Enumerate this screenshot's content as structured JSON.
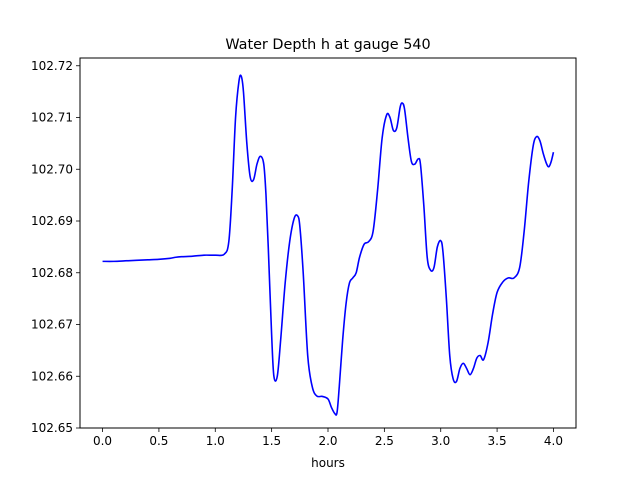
{
  "chart_data": {
    "type": "line",
    "title": "Water Depth h at gauge 540",
    "xlabel": "hours",
    "ylabel": "",
    "xlim": [
      -0.2,
      4.2
    ],
    "ylim": [
      102.65,
      102.7215
    ],
    "xticks": [
      0.0,
      0.5,
      1.0,
      1.5,
      2.0,
      2.5,
      3.0,
      3.5,
      4.0
    ],
    "xtick_labels": [
      "0.0",
      "0.5",
      "1.0",
      "1.5",
      "2.0",
      "2.5",
      "3.0",
      "3.5",
      "4.0"
    ],
    "yticks": [
      102.65,
      102.66,
      102.67,
      102.68,
      102.69,
      102.7,
      102.71,
      102.72
    ],
    "ytick_labels": [
      "102.65",
      "102.66",
      "102.67",
      "102.68",
      "102.69",
      "102.70",
      "102.71",
      "102.72"
    ],
    "grid": false,
    "series": [
      {
        "color": "#0000ff",
        "x": [
          0.0,
          0.1,
          0.2,
          0.3,
          0.4,
          0.5,
          0.6,
          0.65,
          0.7,
          0.8,
          0.9,
          1.0,
          1.08,
          1.12,
          1.15,
          1.18,
          1.21,
          1.23,
          1.25,
          1.28,
          1.31,
          1.34,
          1.37,
          1.4,
          1.43,
          1.45,
          1.47,
          1.5,
          1.52,
          1.55,
          1.58,
          1.62,
          1.66,
          1.7,
          1.73,
          1.75,
          1.78,
          1.82,
          1.86,
          1.9,
          1.95,
          2.0,
          2.03,
          2.06,
          2.08,
          2.1,
          2.13,
          2.16,
          2.19,
          2.22,
          2.25,
          2.28,
          2.32,
          2.36,
          2.4,
          2.44,
          2.48,
          2.52,
          2.55,
          2.58,
          2.61,
          2.64,
          2.66,
          2.68,
          2.71,
          2.74,
          2.77,
          2.8,
          2.82,
          2.85,
          2.88,
          2.91,
          2.94,
          2.97,
          3.0,
          3.02,
          3.05,
          3.08,
          3.11,
          3.14,
          3.17,
          3.2,
          3.23,
          3.26,
          3.29,
          3.32,
          3.35,
          3.38,
          3.42,
          3.46,
          3.5,
          3.55,
          3.6,
          3.65,
          3.7,
          3.74,
          3.78,
          3.82,
          3.85,
          3.88,
          3.91,
          3.94,
          3.96,
          3.98,
          4.0
        ],
        "y": [
          102.6822,
          102.6822,
          102.6823,
          102.6824,
          102.6825,
          102.6826,
          102.6828,
          102.683,
          102.6831,
          102.6832,
          102.6834,
          102.6834,
          102.6836,
          102.686,
          102.696,
          102.71,
          102.717,
          102.718,
          102.715,
          102.705,
          102.6985,
          102.698,
          102.701,
          102.7025,
          102.701,
          102.695,
          102.685,
          102.668,
          102.66,
          102.66,
          102.667,
          102.678,
          102.686,
          102.6905,
          102.691,
          102.689,
          102.68,
          102.664,
          102.658,
          102.6562,
          102.6561,
          102.6556,
          102.654,
          102.6528,
          102.653,
          102.658,
          102.667,
          102.674,
          102.678,
          102.679,
          102.68,
          102.683,
          102.6855,
          102.686,
          102.688,
          102.696,
          102.706,
          102.7105,
          102.71,
          102.7075,
          102.708,
          102.712,
          102.7128,
          102.7115,
          102.706,
          102.7015,
          102.701,
          102.702,
          102.701,
          102.693,
          102.683,
          102.6805,
          102.681,
          102.685,
          102.6862,
          102.684,
          102.675,
          102.664,
          102.6595,
          102.659,
          102.6615,
          102.6625,
          102.6615,
          102.6603,
          102.6615,
          102.6635,
          102.664,
          102.6632,
          102.6665,
          102.672,
          102.6762,
          102.6782,
          102.679,
          102.679,
          102.681,
          102.688,
          102.6975,
          102.7045,
          102.7063,
          102.7055,
          102.703,
          102.701,
          102.7005,
          102.7015,
          102.7033
        ]
      }
    ]
  }
}
